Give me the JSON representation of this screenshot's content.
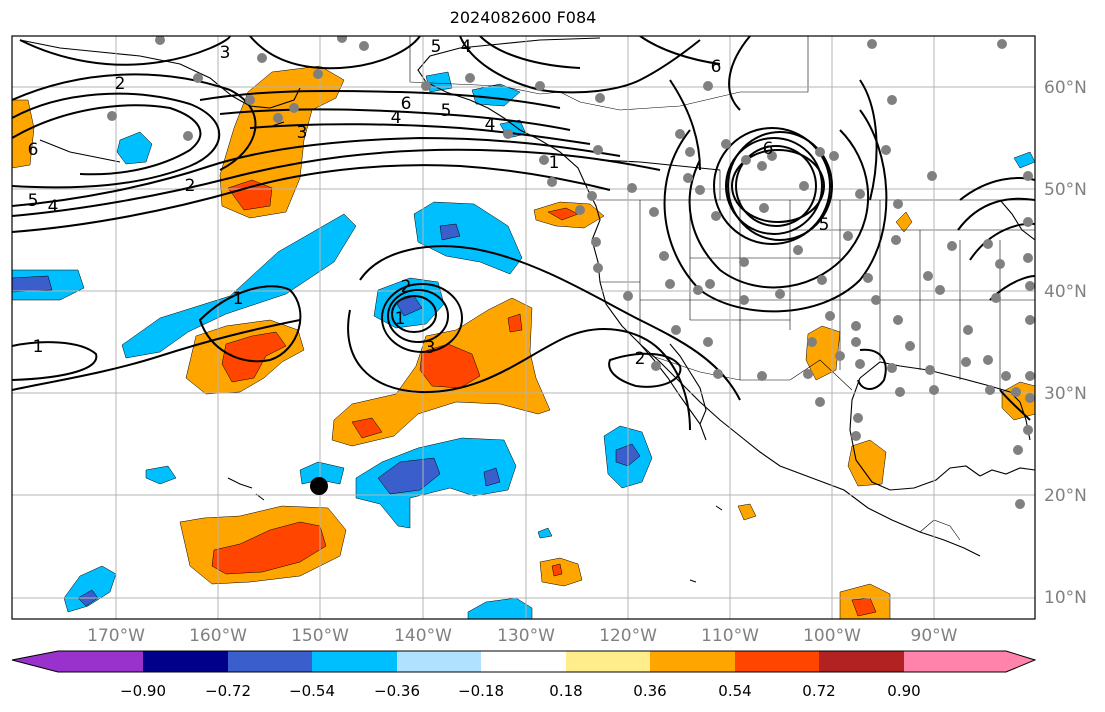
{
  "title": "2024082600 F084",
  "colorbar": {
    "colors": [
      "#9932cc",
      "#00008b",
      "#3a5fcd",
      "#00bfff",
      "#b0e2ff",
      "#ffffff",
      "#ffec8b",
      "#ffa500",
      "#ff4500",
      "#b22222",
      "#ff83aa"
    ],
    "labels": [
      "−0.90",
      "−0.72",
      "−0.54",
      "−0.36",
      "−0.18",
      "0.18",
      "0.36",
      "0.54",
      "0.72",
      "0.90"
    ]
  },
  "lon_labels": [
    "170°W",
    "160°W",
    "150°W",
    "140°W",
    "130°W",
    "120°W",
    "110°W",
    "100°W",
    "90°W"
  ],
  "lat_labels": [
    "60°N",
    "50°N",
    "40°N",
    "30°N",
    "20°N",
    "10°N"
  ],
  "contour_labels": [
    "2",
    "3",
    "6",
    "6",
    "5",
    "4",
    "2",
    "3",
    "1",
    "4",
    "5",
    "3",
    "2",
    "1",
    "1",
    "2",
    "6",
    "5",
    "4",
    "1",
    "6",
    "5",
    "4"
  ]
}
